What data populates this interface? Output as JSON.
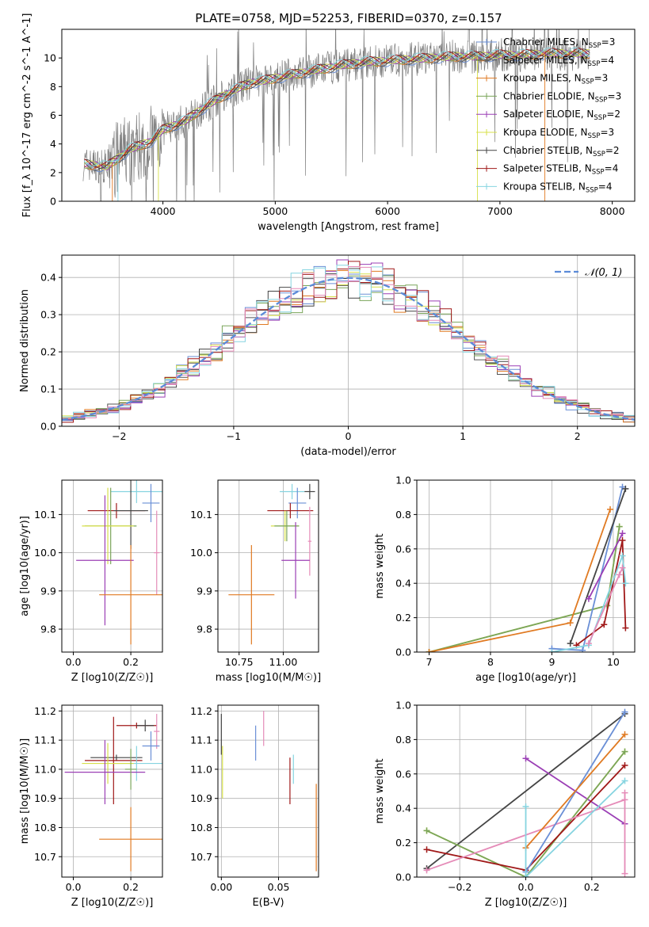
{
  "figure_title": "PLATE=0758, MJD=52253, FIBERID=0370, z=0.157",
  "colors": {
    "Chabrier MILES": "#6a8fd6",
    "Salpeter MILES": "#555555",
    "Kroupa MILES": "#e07a22",
    "Chabrier ELODIE": "#7aa55a",
    "Salpeter ELODIE": "#9b3fb5",
    "Kroupa ELODIE": "#d7e04a",
    "Chabrier STELIB": "#444444",
    "Salpeter STELIB": "#a01818",
    "Kroupa STELIB": "#86d4e0",
    "pink": "#e58bb8",
    "data": "#7f7f7f",
    "gauss": "#5b8bd8"
  },
  "chart_data": [
    {
      "id": "spectrum",
      "type": "line",
      "xlabel": "wavelength [Angstrom, rest frame]",
      "ylabel": "Flux [f_λ 10^-17 erg cm^-2 s^-1 A^-1]",
      "xlim": [
        3100,
        8200
      ],
      "ylim": [
        0,
        12
      ],
      "xticks": [
        4000,
        5000,
        6000,
        7000,
        8000
      ],
      "yticks": [
        0,
        2,
        4,
        6,
        8,
        10
      ],
      "legend": "top-right",
      "data_series": {
        "name": "data",
        "color_key": "data"
      },
      "model_anchor": {
        "x": [
          3300,
          3400,
          3500,
          3600,
          3700,
          3800,
          3900,
          4000,
          4100,
          4200,
          4300,
          4400,
          4500,
          4600,
          4700,
          4800,
          4900,
          5000,
          5200,
          5400,
          5600,
          5800,
          6000,
          6200,
          6400,
          6600,
          6800,
          7000,
          7200,
          7400,
          7600,
          7800,
          8000
        ],
        "y": [
          2.6,
          2.5,
          2.4,
          3.0,
          3.6,
          3.9,
          4.2,
          5.0,
          5.3,
          5.6,
          6.2,
          6.7,
          7.2,
          7.6,
          8.0,
          8.3,
          8.4,
          8.6,
          8.9,
          9.2,
          9.5,
          9.7,
          9.8,
          9.9,
          10.0,
          10.1,
          10.1,
          10.2,
          10.2,
          10.3,
          10.3,
          10.3,
          10.3
        ]
      },
      "series": [
        {
          "name": "Chabrier MILES",
          "label": "Chabrier MILES, N",
          "sub": "SSP",
          "n": "=3"
        },
        {
          "name": "Salpeter MILES",
          "label": "Salpeter MILES, N",
          "sub": "SSP",
          "n": "=4"
        },
        {
          "name": "Kroupa MILES",
          "label": "Kroupa MILES, N",
          "sub": "SSP",
          "n": "=3"
        },
        {
          "name": "Chabrier ELODIE",
          "label": "Chabrier ELODIE, N",
          "sub": "SSP",
          "n": "=3"
        },
        {
          "name": "Salpeter ELODIE",
          "label": "Salpeter ELODIE, N",
          "sub": "SSP",
          "n": "=2"
        },
        {
          "name": "Kroupa ELODIE",
          "label": "Kroupa ELODIE, N",
          "sub": "SSP",
          "n": "=3"
        },
        {
          "name": "Chabrier STELIB",
          "label": "Chabrier STELIB, N",
          "sub": "SSP",
          "n": "=2"
        },
        {
          "name": "Salpeter STELIB",
          "label": "Salpeter STELIB, N",
          "sub": "SSP",
          "n": "=4"
        },
        {
          "name": "Kroupa STELIB",
          "label": "Kroupa STELIB, N",
          "sub": "SSP",
          "n": "=4"
        }
      ]
    },
    {
      "id": "hist",
      "type": "bar",
      "xlabel": "(data-model)/error",
      "ylabel": "Normed distribution",
      "xlim": [
        -2.5,
        2.5
      ],
      "ylim": [
        0,
        0.46
      ],
      "xticks": [
        -2,
        -1,
        0,
        1,
        2
      ],
      "yticks": [
        0.0,
        0.1,
        0.2,
        0.3,
        0.4
      ],
      "grid": true,
      "legend": "top-right",
      "legend_label": "𝒩(0, 1)",
      "bin_width": 0.1,
      "bin_start": -2.5,
      "gauss": {
        "mean": 0,
        "sigma": 1
      },
      "series_colors": [
        "Chabrier MILES",
        "Salpeter MILES",
        "Kroupa MILES",
        "Chabrier ELODIE",
        "Salpeter ELODIE",
        "Kroupa ELODIE",
        "Chabrier STELIB",
        "Salpeter STELIB",
        "Kroupa STELIB",
        "pink"
      ]
    },
    {
      "id": "age_Z",
      "type": "scatter",
      "xlabel": "Z [log10(Z/Z☉)]",
      "ylabel": "age  [log10(age/yr)]",
      "xlim": [
        -0.04,
        0.31
      ],
      "ylim": [
        9.74,
        10.19
      ],
      "xticks": [
        0.0,
        0.2
      ],
      "yticks": [
        9.8,
        9.9,
        10.0,
        10.1
      ],
      "grid": true,
      "points": [
        {
          "c": "Kroupa STELIB",
          "x": 0.22,
          "y": 10.16,
          "ex": 0.09,
          "ey": 0.03
        },
        {
          "c": "Chabrier MILES",
          "x": 0.27,
          "y": 10.13,
          "ex": 0.03,
          "ey": 0.05
        },
        {
          "c": "Salpeter STELIB",
          "x": 0.15,
          "y": 10.11,
          "ex": 0.1,
          "ey": 0.02
        },
        {
          "c": "Chabrier STELIB",
          "x": 0.2,
          "y": 10.11,
          "ex": 0.06,
          "ey": 0.1
        },
        {
          "c": "Chabrier ELODIE",
          "x": 0.13,
          "y": 10.07,
          "ex": 0.09,
          "ey": 0.1
        },
        {
          "c": "Kroupa ELODIE",
          "x": 0.12,
          "y": 10.07,
          "ex": 0.09,
          "ey": 0.1
        },
        {
          "c": "pink",
          "x": 0.29,
          "y": 10.0,
          "ex": 0.01,
          "ey": 0.11
        },
        {
          "c": "Salpeter ELODIE",
          "x": 0.11,
          "y": 9.98,
          "ex": 0.1,
          "ey": 0.17
        },
        {
          "c": "Kroupa MILES",
          "x": 0.2,
          "y": 9.89,
          "ex": 0.11,
          "ey": 0.13
        }
      ]
    },
    {
      "id": "age_mass",
      "type": "scatter",
      "xlabel": "mass [log10(M/M☉)]",
      "ylabel": "",
      "xlim": [
        10.63,
        11.2
      ],
      "ylim": [
        9.74,
        10.19
      ],
      "xticks": [
        10.75,
        11.0
      ],
      "yticks": [
        9.8,
        9.9,
        10.0,
        10.1
      ],
      "grid": true,
      "points": [
        {
          "c": "Chabrier STELIB",
          "x": 11.15,
          "y": 10.16,
          "ex": 0.03,
          "ey": 0.02
        },
        {
          "c": "Kroupa STELIB",
          "x": 11.05,
          "y": 10.16,
          "ex": 0.07,
          "ey": 0.02
        },
        {
          "c": "Chabrier MILES",
          "x": 11.08,
          "y": 10.13,
          "ex": 0.05,
          "ey": 0.04
        },
        {
          "c": "Salpeter STELIB",
          "x": 11.04,
          "y": 10.11,
          "ex": 0.13,
          "ey": 0.02
        },
        {
          "c": "Kroupa ELODIE",
          "x": 11.01,
          "y": 10.07,
          "ex": 0.08,
          "ey": 0.04
        },
        {
          "c": "Chabrier ELODIE",
          "x": 11.02,
          "y": 10.07,
          "ex": 0.07,
          "ey": 0.04
        },
        {
          "c": "pink",
          "x": 11.15,
          "y": 10.03,
          "ex": 0.01,
          "ey": 0.09
        },
        {
          "c": "Salpeter ELODIE",
          "x": 11.07,
          "y": 9.98,
          "ex": 0.08,
          "ey": 0.1
        },
        {
          "c": "Kroupa MILES",
          "x": 10.82,
          "y": 9.89,
          "ex": 0.13,
          "ey": 0.13
        }
      ]
    },
    {
      "id": "mw_age",
      "type": "line",
      "xlabel": "age  [log10(age/yr)]",
      "ylabel": "mass weight",
      "xlim": [
        6.8,
        10.35
      ],
      "ylim": [
        0,
        1.0
      ],
      "xticks": [
        7,
        8,
        9,
        10
      ],
      "yticks": [
        0.0,
        0.2,
        0.4,
        0.6,
        0.8,
        1.0
      ],
      "grid": true,
      "series": [
        {
          "c": "Kroupa ELODIE",
          "x": [
            7.0,
            9.9,
            10.1
          ],
          "y": [
            0.0,
            0.27,
            0.73
          ]
        },
        {
          "c": "Chabrier ELODIE",
          "x": [
            7.0,
            9.9,
            10.1
          ],
          "y": [
            0.0,
            0.27,
            0.73
          ]
        },
        {
          "c": "Kroupa MILES",
          "x": [
            7.0,
            9.3,
            9.95
          ],
          "y": [
            0.0,
            0.17,
            0.83
          ]
        },
        {
          "c": "Chabrier MILES",
          "x": [
            9.0,
            9.5,
            10.15
          ],
          "y": [
            0.02,
            0.01,
            0.96
          ]
        },
        {
          "c": "Chabrier STELIB",
          "x": [
            9.3,
            10.2
          ],
          "y": [
            0.05,
            0.95
          ]
        },
        {
          "c": "Salpeter ELODIE",
          "x": [
            9.6,
            10.15
          ],
          "y": [
            0.31,
            0.69
          ]
        },
        {
          "c": "Salpeter STELIB",
          "x": [
            9.4,
            9.85,
            10.15,
            10.2
          ],
          "y": [
            0.04,
            0.16,
            0.65,
            0.14
          ]
        },
        {
          "c": "Kroupa STELIB",
          "x": [
            9.0,
            9.6,
            10.15,
            10.2
          ],
          "y": [
            0.0,
            0.04,
            0.56,
            0.4
          ]
        },
        {
          "c": "pink",
          "x": [
            9.6,
            10.1,
            10.15
          ],
          "y": [
            0.05,
            0.45,
            0.49
          ]
        }
      ]
    },
    {
      "id": "mass_Z",
      "type": "scatter",
      "xlabel": "Z [log10(Z/Z☉)]",
      "ylabel": "mass [log10(M/M☉)]",
      "xlim": [
        -0.04,
        0.31
      ],
      "ylim": [
        10.63,
        11.22
      ],
      "xticks": [
        0.0,
        0.2
      ],
      "yticks": [
        10.7,
        10.8,
        10.9,
        11.0,
        11.1,
        11.2
      ],
      "grid": true,
      "points": [
        {
          "c": "Salpeter STELIB",
          "x": 0.22,
          "y": 11.15,
          "ex": 0.07,
          "ey": 0.01
        },
        {
          "c": "Chabrier STELIB",
          "x": 0.25,
          "y": 11.15,
          "ex": 0.03,
          "ey": 0.02
        },
        {
          "c": "pink",
          "x": 0.29,
          "y": 11.13,
          "ex": 0.01,
          "ey": 0.06
        },
        {
          "c": "Chabrier MILES",
          "x": 0.27,
          "y": 11.08,
          "ex": 0.03,
          "ey": 0.05
        },
        {
          "c": "Chabrier STELIB",
          "x": 0.15,
          "y": 11.04,
          "ex": 0.09,
          "ey": 0.01
        },
        {
          "c": "Salpeter STELIB",
          "x": 0.14,
          "y": 11.03,
          "ex": 0.1,
          "ey": 0.15
        },
        {
          "c": "Kroupa STELIB",
          "x": 0.22,
          "y": 11.02,
          "ex": 0.09,
          "ey": 0.06
        },
        {
          "c": "Kroupa ELODIE",
          "x": 0.12,
          "y": 11.02,
          "ex": 0.09,
          "ey": 0.07
        },
        {
          "c": "Salpeter ELODIE",
          "x": 0.11,
          "y": 10.99,
          "ex": 0.14,
          "ey": 0.11
        },
        {
          "c": "Chabrier ELODIE",
          "x": 0.2,
          "y": 11.0,
          "ex": 0.02,
          "ey": 0.07
        },
        {
          "c": "Kroupa MILES",
          "x": 0.2,
          "y": 10.76,
          "ex": 0.11,
          "ey": 0.11
        }
      ]
    },
    {
      "id": "mass_ebv",
      "type": "scatter",
      "xlabel": "E(B-V)",
      "ylabel": "",
      "xlim": [
        -0.003,
        0.085
      ],
      "ylim": [
        10.63,
        11.22
      ],
      "xticks": [
        0.0,
        0.05
      ],
      "yticks": [
        10.7,
        10.8,
        10.9,
        11.0,
        11.1,
        11.2
      ],
      "grid": true,
      "points": [
        {
          "c": "Chabrier STELIB",
          "x": 0.0,
          "y": 11.12,
          "ex": 0.0,
          "ey": 0.07
        },
        {
          "c": "Chabrier MILES",
          "x": 0.03,
          "y": 11.09,
          "ex": 0.0,
          "ey": 0.06
        },
        {
          "c": "pink",
          "x": 0.037,
          "y": 11.14,
          "ex": 0.0,
          "ey": 0.06
        },
        {
          "c": "Kroupa ELODIE",
          "x": 0.001,
          "y": 10.99,
          "ex": 0.0,
          "ey": 0.09
        },
        {
          "c": "Salpeter STELIB",
          "x": 0.06,
          "y": 10.96,
          "ex": 0.0,
          "ey": 0.08
        },
        {
          "c": "Kroupa STELIB",
          "x": 0.063,
          "y": 11.0,
          "ex": 0.0,
          "ey": 0.05
        },
        {
          "c": "Kroupa MILES",
          "x": 0.083,
          "y": 10.8,
          "ex": 0.0,
          "ey": 0.15
        }
      ]
    },
    {
      "id": "mw_Z",
      "type": "line",
      "xlabel": "Z [log10(Z/Z☉)]",
      "ylabel": "mass weight",
      "xlim": [
        -0.33,
        0.33
      ],
      "ylim": [
        0,
        1.0
      ],
      "xticks": [
        -0.2,
        0.0,
        0.2
      ],
      "yticks": [
        0.0,
        0.2,
        0.4,
        0.6,
        0.8,
        1.0
      ],
      "grid": true,
      "series": [
        {
          "c": "Chabrier STELIB",
          "x": [
            -0.3,
            0.3
          ],
          "y": [
            0.05,
            0.95
          ]
        },
        {
          "c": "Salpeter ELODIE",
          "x": [
            0.0,
            0.3
          ],
          "y": [
            0.69,
            0.31
          ]
        },
        {
          "c": "Kroupa ELODIE",
          "x": [
            -0.3,
            0.0,
            0.3
          ],
          "y": [
            0.27,
            0.0,
            0.73
          ]
        },
        {
          "c": "Chabrier ELODIE",
          "x": [
            -0.3,
            0.0,
            0.3
          ],
          "y": [
            0.27,
            0.0,
            0.73
          ]
        },
        {
          "c": "Salpeter STELIB",
          "x": [
            -0.3,
            0.0,
            0.3
          ],
          "y": [
            0.16,
            0.04,
            0.65
          ]
        },
        {
          "c": "pink",
          "x": [
            -0.3,
            0.3
          ],
          "y": [
            0.04,
            0.45
          ]
        },
        {
          "c": "Chabrier MILES",
          "x": [
            0.0,
            0.3
          ],
          "y": [
            0.03,
            0.96
          ]
        },
        {
          "c": "Kroupa MILES",
          "x": [
            0.0,
            0.3
          ],
          "y": [
            0.17,
            0.83
          ]
        },
        {
          "c": "Kroupa STELIB",
          "x": [
            0.0,
            0.3
          ],
          "y": [
            0.0,
            0.56
          ]
        },
        {
          "c": "Kroupa STELIB",
          "x": [
            0.0,
            0.0
          ],
          "y": [
            0.0,
            0.41
          ]
        },
        {
          "c": "pink",
          "x": [
            0.3,
            0.3
          ],
          "y": [
            0.02,
            0.49
          ]
        }
      ]
    }
  ]
}
